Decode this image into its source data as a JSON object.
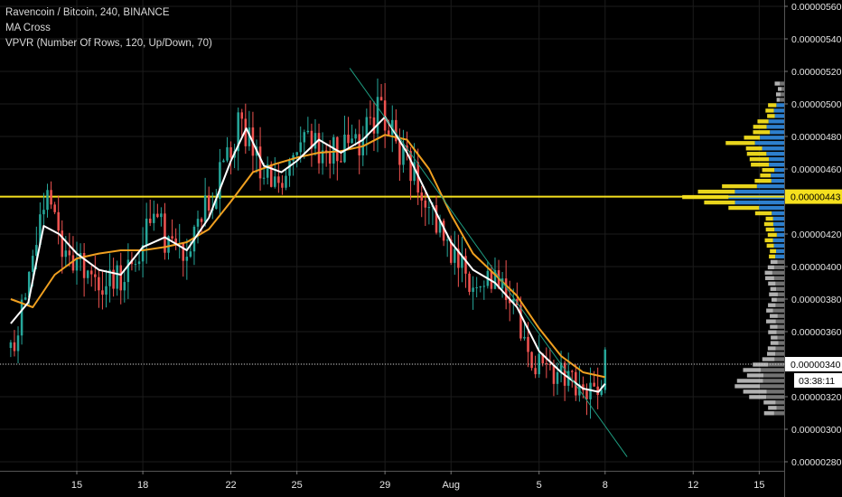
{
  "header": {
    "symbol_line": "Ravencoin / Bitcoin, 240, BINANCE",
    "indicator1": "MA Cross",
    "indicator2": "VPVR (Number Of Rows, 120, Up/Down, 70)"
  },
  "colors": {
    "background": "#000000",
    "grid": "#1c1c1c",
    "candle_up": "#26a69a",
    "candle_down": "#ef5350",
    "ma_fast": "#ffffff",
    "ma_slow": "#f0a020",
    "trendline": "#1e9c80",
    "poc_line": "#f5e01e",
    "vp_up": "#2f86d8",
    "vp_down": "#f5e01e",
    "vp_outside": "#d0d0d0"
  },
  "chart_data": {
    "type": "candlestick",
    "symbol": "RVNBTC",
    "timeframe": "240",
    "exchange": "BINANCE",
    "x_ticks": [
      "15",
      "18",
      "22",
      "25",
      "29",
      "Aug",
      "5",
      "8",
      "12",
      "15"
    ],
    "y_ticks": [
      "0.00000560",
      "0.00000540",
      "0.00000520",
      "0.00000500",
      "0.00000480",
      "0.00000460",
      "0.00000420",
      "0.00000400",
      "0.00000380",
      "0.00000360",
      "0.00000340",
      "0.00000320",
      "0.00000300",
      "0.00000280"
    ],
    "ylim": [
      2.7e-06,
      5.6e-06
    ],
    "current_price": "0.00000340",
    "current_price_value": 3.4e-06,
    "countdown": "03:38:11",
    "poc_price": "0.00000443",
    "poc_price_value": 4.43e-06,
    "ohlc_path": [
      {
        "x": 12.0,
        "close": 3.5e-06
      },
      {
        "x": 12.6,
        "close": 3.75e-06
      },
      {
        "x": 13.2,
        "close": 4.15e-06
      },
      {
        "x": 13.8,
        "close": 4.45e-06
      },
      {
        "x": 14.3,
        "close": 4.15e-06
      },
      {
        "x": 15.0,
        "close": 4.05e-06
      },
      {
        "x": 15.8,
        "close": 3.95e-06
      },
      {
        "x": 16.5,
        "close": 3.92e-06
      },
      {
        "x": 17.3,
        "close": 3.98e-06
      },
      {
        "x": 18.0,
        "close": 4.18e-06
      },
      {
        "x": 18.7,
        "close": 4.25e-06
      },
      {
        "x": 19.4,
        "close": 4.1e-06
      },
      {
        "x": 20.0,
        "close": 4.05e-06
      },
      {
        "x": 20.6,
        "close": 4.28e-06
      },
      {
        "x": 21.3,
        "close": 4.48e-06
      },
      {
        "x": 21.8,
        "close": 4.62e-06
      },
      {
        "x": 22.3,
        "close": 4.85e-06
      },
      {
        "x": 22.9,
        "close": 4.78e-06
      },
      {
        "x": 23.5,
        "close": 4.6e-06
      },
      {
        "x": 24.2,
        "close": 4.52e-06
      },
      {
        "x": 24.8,
        "close": 4.68e-06
      },
      {
        "x": 25.5,
        "close": 4.76e-06
      },
      {
        "x": 26.2,
        "close": 4.72e-06
      },
      {
        "x": 26.8,
        "close": 4.68e-06
      },
      {
        "x": 27.5,
        "close": 4.74e-06
      },
      {
        "x": 28.2,
        "close": 4.85e-06
      },
      {
        "x": 28.8,
        "close": 4.98e-06
      },
      {
        "x": 29.4,
        "close": 4.82e-06
      },
      {
        "x": 30.0,
        "close": 4.62e-06
      },
      {
        "x": 30.6,
        "close": 4.48e-06
      },
      {
        "x": 31.2,
        "close": 4.32e-06
      },
      {
        "x": 31.8,
        "close": 4.12e-06
      },
      {
        "x": 32.3,
        "close": 3.98e-06
      },
      {
        "x": 32.9,
        "close": 3.92e-06
      },
      {
        "x": 33.5,
        "close": 3.9e-06
      },
      {
        "x": 34.2,
        "close": 3.88e-06
      },
      {
        "x": 34.8,
        "close": 3.72e-06
      },
      {
        "x": 35.4,
        "close": 3.52e-06
      },
      {
        "x": 36.0,
        "close": 3.4e-06
      },
      {
        "x": 36.6,
        "close": 3.35e-06
      },
      {
        "x": 37.2,
        "close": 3.3e-06
      },
      {
        "x": 37.8,
        "close": 3.25e-06
      },
      {
        "x": 38.2,
        "close": 3.18e-06
      },
      {
        "x": 38.6,
        "close": 3.25e-06
      },
      {
        "x": 39.0,
        "close": 3.4e-06
      }
    ],
    "ma_fast_path": [
      {
        "x": 12.0,
        "y": 3.65e-06
      },
      {
        "x": 12.8,
        "y": 3.78e-06
      },
      {
        "x": 13.5,
        "y": 4.25e-06
      },
      {
        "x": 14.2,
        "y": 4.2e-06
      },
      {
        "x": 15.0,
        "y": 4.08e-06
      },
      {
        "x": 16.0,
        "y": 3.98e-06
      },
      {
        "x": 17.0,
        "y": 3.95e-06
      },
      {
        "x": 18.0,
        "y": 4.12e-06
      },
      {
        "x": 19.0,
        "y": 4.18e-06
      },
      {
        "x": 20.0,
        "y": 4.1e-06
      },
      {
        "x": 21.0,
        "y": 4.3e-06
      },
      {
        "x": 22.0,
        "y": 4.65e-06
      },
      {
        "x": 22.7,
        "y": 4.85e-06
      },
      {
        "x": 23.5,
        "y": 4.62e-06
      },
      {
        "x": 24.3,
        "y": 4.58e-06
      },
      {
        "x": 25.0,
        "y": 4.65e-06
      },
      {
        "x": 26.0,
        "y": 4.78e-06
      },
      {
        "x": 27.0,
        "y": 4.7e-06
      },
      {
        "x": 28.0,
        "y": 4.78e-06
      },
      {
        "x": 29.0,
        "y": 4.92e-06
      },
      {
        "x": 30.0,
        "y": 4.7e-06
      },
      {
        "x": 31.0,
        "y": 4.42e-06
      },
      {
        "x": 32.0,
        "y": 4.15e-06
      },
      {
        "x": 33.0,
        "y": 3.98e-06
      },
      {
        "x": 34.0,
        "y": 3.9e-06
      },
      {
        "x": 35.0,
        "y": 3.75e-06
      },
      {
        "x": 36.0,
        "y": 3.48e-06
      },
      {
        "x": 37.0,
        "y": 3.35e-06
      },
      {
        "x": 38.0,
        "y": 3.25e-06
      },
      {
        "x": 38.7,
        "y": 3.23e-06
      },
      {
        "x": 39.0,
        "y": 3.28e-06
      }
    ],
    "ma_slow_path": [
      {
        "x": 12.0,
        "y": 3.8e-06
      },
      {
        "x": 13.0,
        "y": 3.75e-06
      },
      {
        "x": 14.0,
        "y": 3.95e-06
      },
      {
        "x": 15.0,
        "y": 4.05e-06
      },
      {
        "x": 16.0,
        "y": 4.08e-06
      },
      {
        "x": 17.0,
        "y": 4.1e-06
      },
      {
        "x": 18.0,
        "y": 4.1e-06
      },
      {
        "x": 19.0,
        "y": 4.12e-06
      },
      {
        "x": 20.0,
        "y": 4.15e-06
      },
      {
        "x": 21.0,
        "y": 4.23e-06
      },
      {
        "x": 22.0,
        "y": 4.4e-06
      },
      {
        "x": 23.0,
        "y": 4.58e-06
      },
      {
        "x": 24.0,
        "y": 4.63e-06
      },
      {
        "x": 25.0,
        "y": 4.67e-06
      },
      {
        "x": 26.0,
        "y": 4.7e-06
      },
      {
        "x": 27.0,
        "y": 4.71e-06
      },
      {
        "x": 28.0,
        "y": 4.74e-06
      },
      {
        "x": 29.0,
        "y": 4.81e-06
      },
      {
        "x": 30.0,
        "y": 4.78e-06
      },
      {
        "x": 31.0,
        "y": 4.6e-06
      },
      {
        "x": 32.0,
        "y": 4.32e-06
      },
      {
        "x": 33.0,
        "y": 4.08e-06
      },
      {
        "x": 34.0,
        "y": 3.95e-06
      },
      {
        "x": 35.0,
        "y": 3.82e-06
      },
      {
        "x": 36.0,
        "y": 3.62e-06
      },
      {
        "x": 37.0,
        "y": 3.45e-06
      },
      {
        "x": 38.0,
        "y": 3.35e-06
      },
      {
        "x": 39.0,
        "y": 3.32e-06
      }
    ],
    "trendline": {
      "x1": 27.4,
      "y1": 5.22e-06,
      "x2": 40.0,
      "y2": 2.83e-06
    },
    "volume_profile": {
      "rows_from_price": 3.1e-06,
      "rows_to_price": 5.12e-06,
      "value_area_low": 4.03e-06,
      "value_area_high": 5e-06
    }
  }
}
